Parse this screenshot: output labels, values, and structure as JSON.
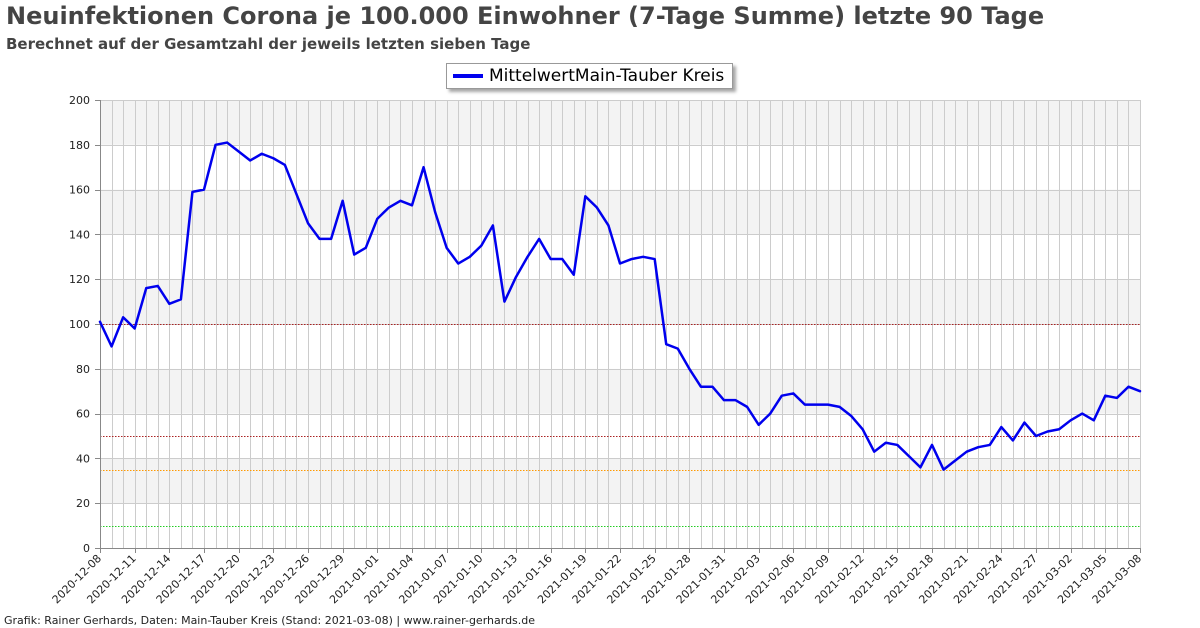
{
  "header": {
    "title": "Neuinfektionen Corona je 100.000 Einwohner (7-Tage Summe) letzte 90 Tage",
    "subtitle": "Berechnet auf der Gesamtzahl der jeweils letzten sieben Tage"
  },
  "footer": {
    "credit": "Grafik: Rainer Gerhards, Daten: Main-Tauber Kreis (Stand: 2021-03-08) | www.rainer-gerhards.de"
  },
  "chart_data": {
    "type": "line",
    "title": "Neuinfektionen Corona je 100.000 Einwohner (7-Tage Summe) letzte 90 Tage",
    "subtitle": "Berechnet auf der Gesamtzahl der jeweils letzten sieben Tage",
    "ylim": [
      0,
      200
    ],
    "yticks": [
      0,
      20,
      40,
      60,
      80,
      100,
      120,
      140,
      160,
      180,
      200
    ],
    "grid": true,
    "legend_position": "top-center",
    "x_tick_labels": [
      "2020-12-08",
      "2020-12-11",
      "2020-12-14",
      "2020-12-17",
      "2020-12-20",
      "2020-12-23",
      "2020-12-26",
      "2020-12-29",
      "2021-01-01",
      "2021-01-04",
      "2021-01-07",
      "2021-01-10",
      "2021-01-13",
      "2021-01-16",
      "2021-01-19",
      "2021-01-22",
      "2021-01-25",
      "2021-01-28",
      "2021-01-31",
      "2021-02-03",
      "2021-02-06",
      "2021-02-09",
      "2021-02-12",
      "2021-02-15",
      "2021-02-18",
      "2021-02-21",
      "2021-02-24",
      "2021-02-27",
      "2021-03-02",
      "2021-03-05",
      "2021-03-08"
    ],
    "series": [
      {
        "name": "MittelwertMain-Tauber Kreis",
        "color": "#0000ee",
        "x_start": "2020-12-08",
        "values": [
          101,
          90,
          103,
          98,
          116,
          117,
          109,
          111,
          159,
          160,
          180,
          181,
          177,
          173,
          176,
          174,
          171,
          158,
          145,
          138,
          138,
          155,
          131,
          134,
          147,
          152,
          155,
          153,
          170,
          150,
          134,
          127,
          130,
          135,
          144,
          110,
          121,
          130,
          138,
          129,
          129,
          122,
          157,
          152,
          144,
          127,
          129,
          130,
          129,
          91,
          89,
          80,
          72,
          72,
          66,
          66,
          63,
          55,
          60,
          68,
          69,
          64,
          64,
          64,
          63,
          59,
          53,
          43,
          47,
          46,
          41,
          36,
          46,
          35,
          39,
          43,
          45,
          46,
          54,
          48,
          56,
          50,
          52,
          53,
          57,
          60,
          57,
          68,
          67,
          72,
          70
        ]
      }
    ],
    "reference_lines": [
      {
        "value": 100,
        "color": "#aa2222",
        "style": "dotted"
      },
      {
        "value": 50,
        "color": "#aa2222",
        "style": "dotted"
      },
      {
        "value": 35,
        "color": "#ff9900",
        "style": "dotted"
      },
      {
        "value": 10,
        "color": "#22cc22",
        "style": "dotted"
      }
    ],
    "band_colors": [
      "#f3f3f3",
      "#ffffff"
    ],
    "gridline_color": "#cccccc"
  }
}
